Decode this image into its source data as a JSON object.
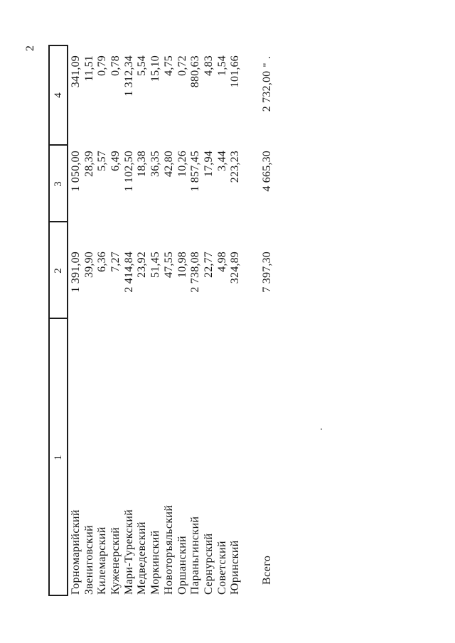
{
  "page": {
    "number": "2"
  },
  "colors": {
    "ink": "#161616",
    "paper": "#ffffff",
    "rule": "#1c1c1c"
  },
  "table": {
    "headers": [
      "1",
      "2",
      "3",
      "4"
    ],
    "rows": [
      {
        "name": "Горномарийский",
        "c2": "1 391,09",
        "c3": "1 050,00",
        "c4": "341,09"
      },
      {
        "name": "Звениговский",
        "c2": "39,90",
        "c3": "28,39",
        "c4": "11,51"
      },
      {
        "name": "Килемарский",
        "c2": "6,36",
        "c3": "5,57",
        "c4": "0,79"
      },
      {
        "name": "Куженерский",
        "c2": "7,27",
        "c3": "6,49",
        "c4": "0,78"
      },
      {
        "name": "Мари-Турекский",
        "c2": "2 414,84",
        "c3": "1 102,50",
        "c4": "1 312,34"
      },
      {
        "name": "Медведевский",
        "c2": "23,92",
        "c3": "18,38",
        "c4": "5,54"
      },
      {
        "name": "Моркинский",
        "c2": "51,45",
        "c3": "36,35",
        "c4": "15,10"
      },
      {
        "name": "Новоторъяльский",
        "c2": "47,55",
        "c3": "42,80",
        "c4": "4,75"
      },
      {
        "name": "Оршанский",
        "c2": "10,98",
        "c3": "10,26",
        "c4": "0,72"
      },
      {
        "name": "Параньгинский",
        "c2": "2 738,08",
        "c3": "1 857,45",
        "c4": "880,63"
      },
      {
        "name": "Сернурский",
        "c2": "22,77",
        "c3": "17,94",
        "c4": "4,83"
      },
      {
        "name": "Советский",
        "c2": "4,98",
        "c3": "3,44",
        "c4": "1,54"
      },
      {
        "name": "Юринский",
        "c2": "324,89",
        "c3": "223,23",
        "c4": "101,66"
      }
    ],
    "total": {
      "label": "Всего",
      "c2": "7 397,30",
      "c3": "4 665,30",
      "c4": "2 732,00",
      "mark": "\" ."
    }
  }
}
